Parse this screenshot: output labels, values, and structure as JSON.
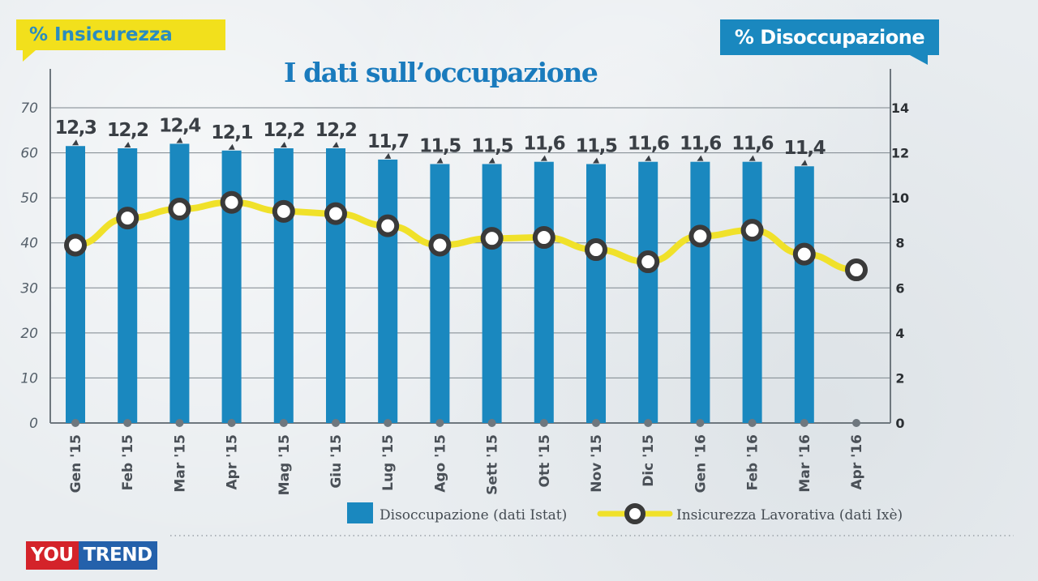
{
  "header": {
    "left_badge": "% Insicurezza",
    "right_badge": "% Disoccupazione",
    "title": "I dati sull’occupazione"
  },
  "logo": {
    "part1": "YOU",
    "part2": "TREND"
  },
  "colors": {
    "bar": "#1a88bf",
    "line": "#f0e12a",
    "marker_stroke": "#3a3a3a",
    "grid": "#7d868d",
    "badge_yellow": "#f2e01c",
    "badge_blue": "#1a88bf",
    "title": "#1a7bbd",
    "logo_red": "#d4232a",
    "logo_blue": "#2461ab"
  },
  "chart_data": {
    "type": "bar+line",
    "title": "I dati sull’occupazione",
    "categories": [
      "Gen '15",
      "Feb '15",
      "Mar '15",
      "Apr '15",
      "Mag '15",
      "Giu '15",
      "Lug '15",
      "Ago '15",
      "Sett '15",
      "Ott '15",
      "Nov '15",
      "Dic '15",
      "Gen '16",
      "Feb '16",
      "Mar '16",
      "Apr '16"
    ],
    "left_axis": {
      "label": "% Insicurezza",
      "ticks": [
        "0",
        "10",
        "20",
        "30",
        "40",
        "50",
        "60",
        "70"
      ],
      "ylim": [
        0,
        70
      ]
    },
    "right_axis": {
      "label": "% Disoccupazione",
      "ticks": [
        "0",
        "2",
        "4",
        "6",
        "8",
        "10",
        "12",
        "14"
      ],
      "ylim": [
        0,
        14
      ]
    },
    "grid": true,
    "legend_position": "bottom-right",
    "series": [
      {
        "name": "Disoccupazione (dati Istat)",
        "type": "bar",
        "axis": "right",
        "values": [
          12.3,
          12.2,
          12.4,
          12.1,
          12.2,
          12.2,
          11.7,
          11.5,
          11.5,
          11.6,
          11.5,
          11.6,
          11.6,
          11.6,
          11.4,
          null
        ],
        "labels": [
          "12,3",
          "12,2",
          "12,4",
          "12,1",
          "12,2",
          "12,2",
          "11,7",
          "11,5",
          "11,5",
          "11,6",
          "11,5",
          "11,6",
          "11,6",
          "11,6",
          "11,4",
          ""
        ]
      },
      {
        "name": "Insicurezza Lavorativa (dati Ixè)",
        "type": "line",
        "axis": "left",
        "values": [
          39.5,
          45.5,
          47.5,
          49.0,
          47.0,
          46.5,
          43.8,
          39.5,
          41.0,
          41.2,
          38.5,
          35.8,
          41.5,
          42.8,
          37.5,
          34.0
        ]
      }
    ]
  }
}
